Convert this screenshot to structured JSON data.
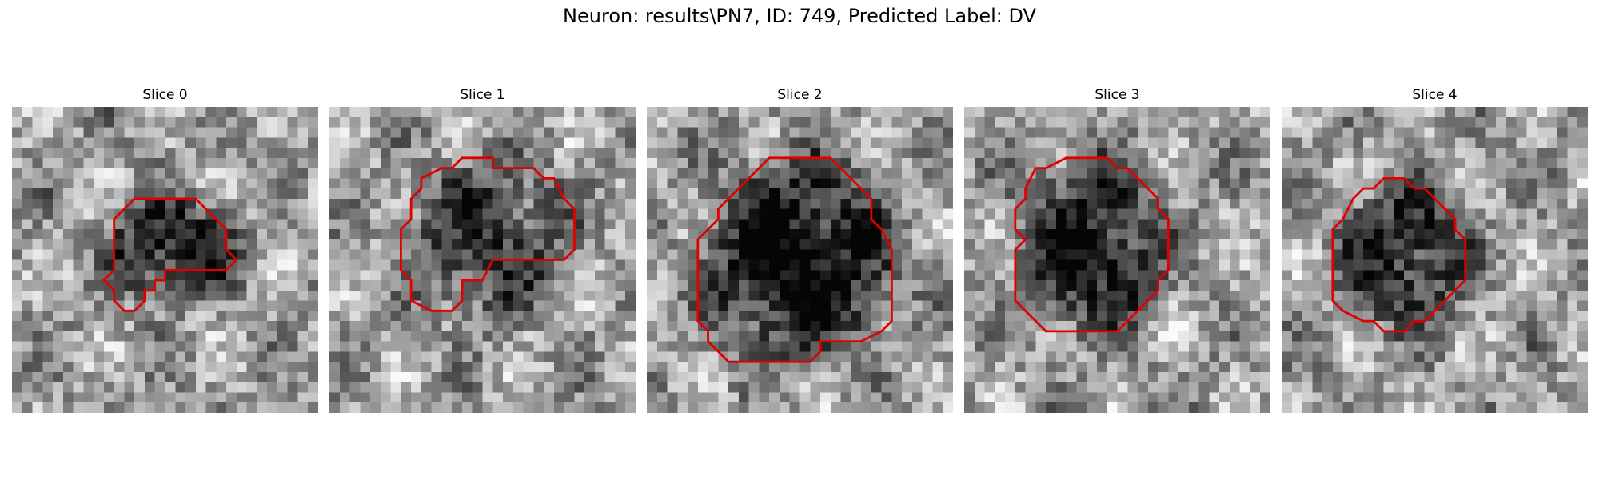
{
  "figure": {
    "title": "Neuron: results\\PN7, ID: 749, Predicted Label: DV"
  },
  "contour_color": "#e00000",
  "slices": [
    {
      "title": "Slice 0",
      "contour": [
        [
          12,
          9
        ],
        [
          18,
          9
        ],
        [
          21,
          12
        ],
        [
          21,
          14
        ],
        [
          22,
          15
        ],
        [
          21,
          16
        ],
        [
          15,
          16
        ],
        [
          15,
          17
        ],
        [
          14,
          17
        ],
        [
          14,
          18
        ],
        [
          13,
          18
        ],
        [
          13,
          19
        ],
        [
          12,
          20
        ],
        [
          11,
          20
        ],
        [
          10,
          19
        ],
        [
          10,
          18
        ],
        [
          9,
          17
        ],
        [
          10,
          16
        ],
        [
          10,
          11
        ]
      ]
    },
    {
      "title": "Slice 1",
      "contour": [
        [
          13,
          5
        ],
        [
          16,
          5
        ],
        [
          16,
          6
        ],
        [
          20,
          6
        ],
        [
          21,
          7
        ],
        [
          22,
          7
        ],
        [
          23,
          9
        ],
        [
          24,
          10
        ],
        [
          24,
          14
        ],
        [
          23,
          15
        ],
        [
          16,
          15
        ],
        [
          15,
          17
        ],
        [
          13,
          17
        ],
        [
          13,
          19
        ],
        [
          12,
          20
        ],
        [
          10,
          20
        ],
        [
          8,
          19
        ],
        [
          8,
          17
        ],
        [
          7,
          16
        ],
        [
          7,
          12
        ],
        [
          8,
          11
        ],
        [
          8,
          9
        ],
        [
          9,
          8
        ],
        [
          9,
          7
        ],
        [
          11,
          6
        ],
        [
          12,
          6
        ]
      ]
    },
    {
      "title": "Slice 2",
      "contour": [
        [
          12,
          5
        ],
        [
          18,
          5
        ],
        [
          19,
          6
        ],
        [
          20,
          7
        ],
        [
          21,
          8
        ],
        [
          22,
          9
        ],
        [
          22,
          11
        ],
        [
          23,
          12
        ],
        [
          24,
          14
        ],
        [
          24,
          21
        ],
        [
          23,
          22
        ],
        [
          21,
          23
        ],
        [
          17,
          23
        ],
        [
          17,
          24
        ],
        [
          16,
          25
        ],
        [
          8,
          25
        ],
        [
          7,
          24
        ],
        [
          6,
          23
        ],
        [
          6,
          22
        ],
        [
          5,
          21
        ],
        [
          5,
          13
        ],
        [
          6,
          12
        ],
        [
          7,
          11
        ],
        [
          7,
          10
        ],
        [
          8,
          9
        ],
        [
          9,
          8
        ],
        [
          10,
          7
        ]
      ]
    },
    {
      "title": "Slice 3",
      "contour": [
        [
          11,
          5
        ],
        [
          14,
          5
        ],
        [
          15,
          6
        ],
        [
          16,
          6
        ],
        [
          18,
          8
        ],
        [
          19,
          9
        ],
        [
          19,
          10
        ],
        [
          20,
          11
        ],
        [
          20,
          16
        ],
        [
          19,
          17
        ],
        [
          19,
          18
        ],
        [
          18,
          19
        ],
        [
          16,
          21
        ],
        [
          15,
          22
        ],
        [
          8,
          22
        ],
        [
          7,
          21
        ],
        [
          6,
          20
        ],
        [
          5,
          19
        ],
        [
          5,
          15
        ],
        [
          5,
          14
        ],
        [
          6,
          13
        ],
        [
          5,
          12
        ],
        [
          5,
          10
        ],
        [
          6,
          9
        ],
        [
          6,
          8
        ],
        [
          7,
          6
        ],
        [
          8,
          6
        ],
        [
          10,
          5
        ]
      ]
    },
    {
      "title": "Slice 4",
      "contour": [
        [
          10,
          7
        ],
        [
          12,
          7
        ],
        [
          13,
          8
        ],
        [
          14,
          8
        ],
        [
          15,
          9
        ],
        [
          17,
          11
        ],
        [
          17,
          12
        ],
        [
          18,
          13
        ],
        [
          18,
          17
        ],
        [
          17,
          18
        ],
        [
          16,
          19
        ],
        [
          15,
          20
        ],
        [
          14,
          21
        ],
        [
          13,
          21
        ],
        [
          12,
          22
        ],
        [
          10,
          22
        ],
        [
          9,
          21
        ],
        [
          8,
          21
        ],
        [
          6,
          20
        ],
        [
          5,
          19
        ],
        [
          5,
          12
        ],
        [
          6,
          11
        ],
        [
          7,
          9
        ],
        [
          8,
          8
        ],
        [
          9,
          8
        ]
      ]
    }
  ]
}
